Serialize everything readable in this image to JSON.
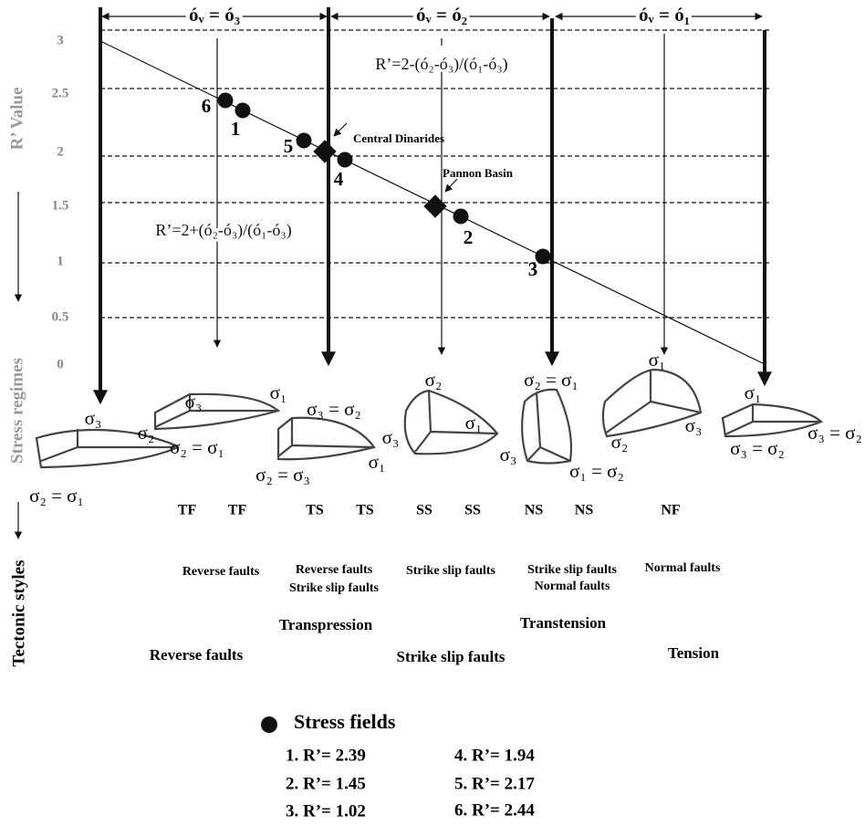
{
  "header": {
    "regimes": [
      "óᵥ = ó₃",
      "óᵥ = ó₂",
      "óᵥ = ó₁"
    ]
  },
  "formulas": [
    "R’=2-(ó₂-ó₃)/(ó₁-ó₃)",
    "R’=2+(ó₂-ó₃)/(ó₁-ó₃)"
  ],
  "axis": {
    "label": "R’ Value",
    "ticks": [
      "3",
      "2.5",
      "2",
      "1.5",
      "1",
      "0.5",
      "0"
    ]
  },
  "annotations": [
    "Central Dinarides",
    "Pannon Basin"
  ],
  "point_labels": [
    "6",
    "1",
    "5",
    "4",
    "2",
    "3"
  ],
  "side_labels": [
    "Stress regimes",
    "Tectonic styles"
  ],
  "stress_labels": [
    "σ₃",
    "σ₂",
    "σ₂ = σ₁",
    "σ₃",
    "σ₁",
    "σ₂ = σ₁",
    "σ₃ = σ₂",
    "σ₂ = σ₃",
    "σ₁",
    "σ₂",
    "σ₃",
    "σ₁",
    "σ₂ = σ₁",
    "σ₃",
    "σ₁ = σ₂",
    "σ₁",
    "σ₃",
    "σ₂",
    "σ₁",
    "σ₃ = σ₂",
    "σ₃ = σ₂"
  ],
  "regime_codes": [
    "TF",
    "TF",
    "TS",
    "TS",
    "SS",
    "SS",
    "NS",
    "NS",
    "NF"
  ],
  "tectonic_styles": {
    "row1": [
      "Reverse faults",
      "Reverse faults",
      "Strike slip faults",
      "Strike slip faults",
      "Strike slip faults",
      "Normal faults",
      "Normal faults"
    ],
    "row2": [
      "Transpression",
      "Transtension"
    ],
    "row3": [
      "Reverse faults",
      "Strike slip faults",
      "Tension"
    ]
  },
  "legend": {
    "title": "Stress fields",
    "entries": [
      "1. R’= 2.39",
      "2. R’= 1.45",
      "3. R’= 1.02",
      "4. R’= 1.94",
      "5. R’= 2.17",
      "6. R’= 2.44"
    ]
  }
}
